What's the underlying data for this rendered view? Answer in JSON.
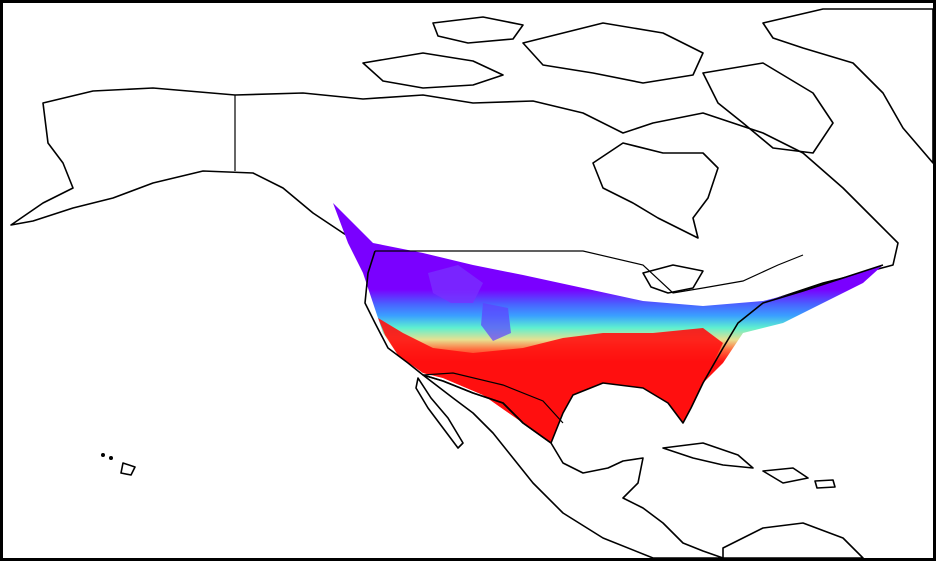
{
  "map": {
    "projection": "north-america-regional",
    "colormap": "rainbow",
    "colors": {
      "cold": "#7a00ff",
      "cool": "#3aa0ff",
      "mid": "#5ef0d0",
      "mild": "#e8e090",
      "warm": "#ff7040",
      "hot": "#ff1010",
      "ocean": "#ffffff",
      "outline": "#000000"
    },
    "frame": {
      "border_color": "#000000"
    }
  }
}
